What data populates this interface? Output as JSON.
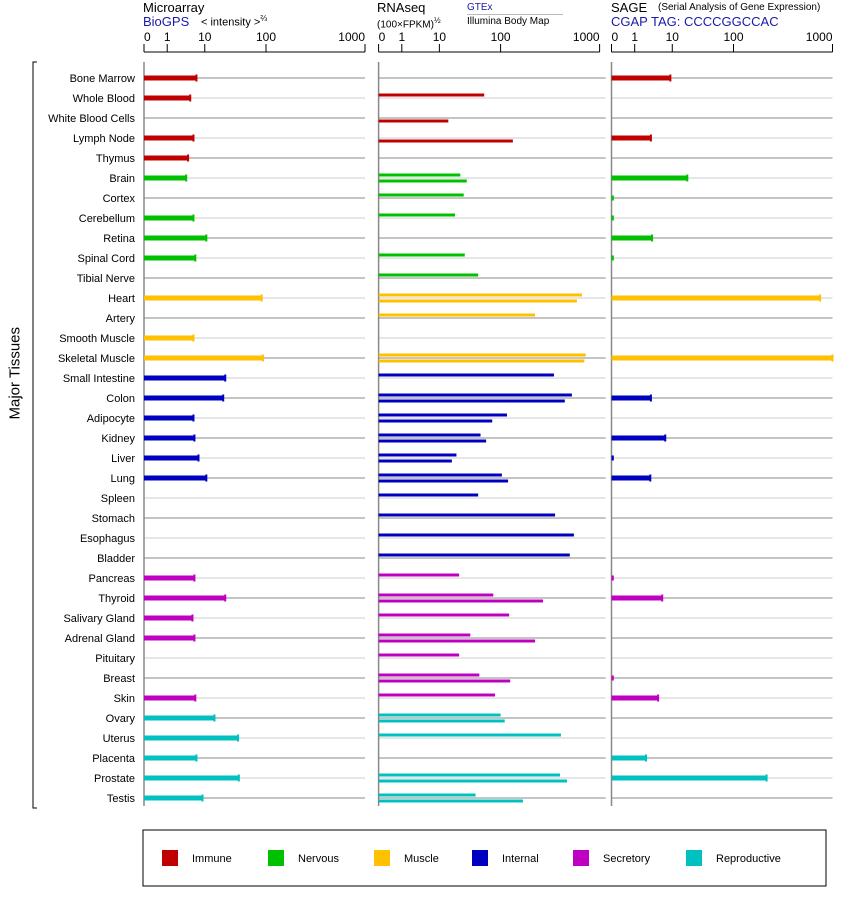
{
  "headers": {
    "microarray": {
      "title": "Microarray",
      "source": "BioGPS",
      "unit": "< intensity >",
      "unit_exp": "⅔"
    },
    "rnaseq": {
      "title": "RNAseq",
      "unit": "(100×FPKM)",
      "unit_exp": "½",
      "source1": "GTEx",
      "source2": "Illumina Body Map"
    },
    "sage": {
      "title": "SAGE",
      "subtitle": "(Serial Analysis of Gene Expression)",
      "tag": "CGAP TAG: CCCCGGCCAC"
    }
  },
  "ylabel": "Major Tissues",
  "chart_data": {
    "type": "bar",
    "orientation": "horizontal",
    "xscale": "compressed (0,1,10,100,1000 ticks)",
    "xticks": [
      "0",
      "1",
      "10",
      "100",
      "1000"
    ],
    "xtick_values": [
      0,
      1,
      10,
      100,
      1000
    ],
    "xlim": [
      0,
      1000
    ],
    "categories": [
      "Bone Marrow",
      "Whole Blood",
      "White Blood Cells",
      "Lymph Node",
      "Thymus",
      "Brain",
      "Cortex",
      "Cerebellum",
      "Retina",
      "Spinal Cord",
      "Tibial Nerve",
      "Heart",
      "Artery",
      "Smooth Muscle",
      "Skeletal Muscle",
      "Small Intestine",
      "Colon",
      "Adipocyte",
      "Kidney",
      "Liver",
      "Lung",
      "Spleen",
      "Stomach",
      "Esophagus",
      "Bladder",
      "Pancreas",
      "Thyroid",
      "Salivary Gland",
      "Adrenal Gland",
      "Pituitary",
      "Breast",
      "Skin",
      "Ovary",
      "Uterus",
      "Placenta",
      "Prostate",
      "Testis"
    ],
    "category_groups": [
      0,
      0,
      0,
      0,
      0,
      1,
      1,
      1,
      1,
      1,
      1,
      2,
      2,
      2,
      2,
      3,
      3,
      3,
      3,
      3,
      3,
      3,
      3,
      3,
      3,
      4,
      4,
      4,
      4,
      4,
      4,
      4,
      5,
      5,
      5,
      5,
      5
    ],
    "groups": [
      {
        "name": "Immune",
        "color": "#c00000"
      },
      {
        "name": "Nervous",
        "color": "#00c000"
      },
      {
        "name": "Muscle",
        "color": "#ffc000"
      },
      {
        "name": "Internal",
        "color": "#0000c0"
      },
      {
        "name": "Secretory",
        "color": "#c000c0"
      },
      {
        "name": "Reproductive",
        "color": "#00c0c0"
      }
    ],
    "series": [
      {
        "name": "Microarray (BioGPS)",
        "panel": 0,
        "values": [
          6.0,
          4.1,
          null,
          5.0,
          3.6,
          3.2,
          null,
          5.0,
          10.6,
          5.6,
          null,
          85,
          null,
          5.0,
          89,
          21.6,
          20,
          5.0,
          5.3,
          6.8,
          10.6,
          null,
          null,
          null,
          null,
          5.3,
          21.6,
          4.7,
          5.3,
          null,
          null,
          5.6,
          14.4,
          35,
          6.0,
          36,
          8.7
        ]
      },
      {
        "name": "RNAseq GTEx",
        "panel": 1,
        "values": [
          null,
          54,
          null,
          null,
          null,
          22,
          25,
          18,
          null,
          26,
          43,
          663,
          223,
          null,
          725,
          346,
          525,
          116,
          47,
          19,
          103,
          43,
          355,
          550,
          500,
          21,
          76,
          122,
          32,
          21,
          45,
          81,
          100,
          407,
          null,
          398,
          39
        ]
      },
      {
        "name": "RNAseq Illumina Body Map",
        "panel": 1,
        "values": [
          null,
          null,
          14,
          133,
          null,
          28,
          null,
          null,
          null,
          null,
          null,
          590,
          null,
          null,
          700,
          null,
          445,
          73,
          58,
          16,
          119,
          null,
          null,
          null,
          null,
          null,
          268,
          null,
          223,
          null,
          125,
          null,
          110,
          null,
          null,
          468,
          168
        ]
      },
      {
        "name": "SAGE",
        "panel": 2,
        "values": [
          8.9,
          null,
          null,
          2.7,
          null,
          17.6,
          0.1,
          0.1,
          2.9,
          0.1,
          null,
          750,
          null,
          null,
          1000,
          null,
          2.7,
          null,
          6.5,
          0.1,
          2.6,
          null,
          null,
          null,
          null,
          0.1,
          5.4,
          null,
          null,
          null,
          0.1,
          4.2,
          null,
          null,
          2.0,
          216,
          null
        ]
      }
    ],
    "legend": "bottom"
  }
}
